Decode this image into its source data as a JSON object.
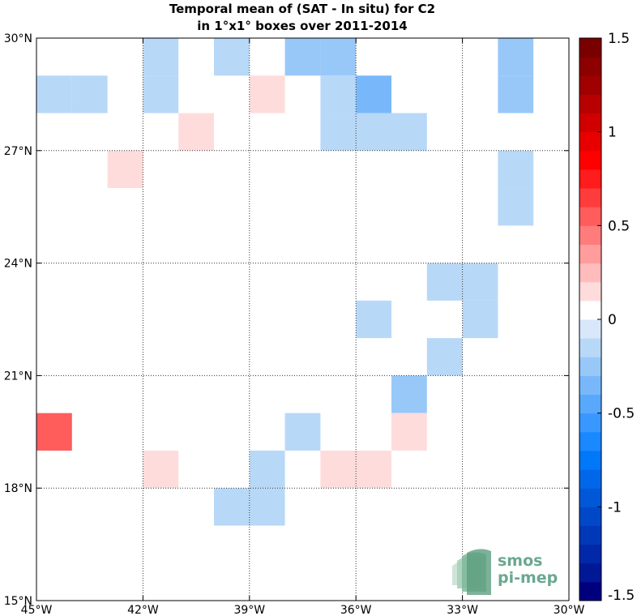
{
  "chart_data": {
    "type": "heatmap",
    "title_lines": [
      "Temporal mean of (SAT - In situ) for C2",
      "in 1°x1° boxes over 2011-2014"
    ],
    "x_ticks": [
      {
        "value": -45,
        "label": "45°W"
      },
      {
        "value": -42,
        "label": "42°W"
      },
      {
        "value": -39,
        "label": "39°W"
      },
      {
        "value": -36,
        "label": "36°W"
      },
      {
        "value": -33,
        "label": "33°W"
      },
      {
        "value": -30,
        "label": "30°W"
      }
    ],
    "y_ticks": [
      {
        "value": 15,
        "label": "15°N"
      },
      {
        "value": 18,
        "label": "18°N"
      },
      {
        "value": 21,
        "label": "21°N"
      },
      {
        "value": 24,
        "label": "24°N"
      },
      {
        "value": 27,
        "label": "27°N"
      },
      {
        "value": 30,
        "label": "30°N"
      }
    ],
    "xlim": [
      -45,
      -30
    ],
    "ylim": [
      15,
      30
    ],
    "grid": true,
    "colorbar": {
      "limits": [
        -1.5,
        1.5
      ],
      "n_levels": 30,
      "ticks": [
        {
          "value": 1.5,
          "label": "1.5"
        },
        {
          "value": 1.0,
          "label": "1"
        },
        {
          "value": 0.5,
          "label": "0.5"
        },
        {
          "value": 0.0,
          "label": "0"
        },
        {
          "value": -0.5,
          "label": "-0.5"
        },
        {
          "value": -1.0,
          "label": "-1"
        },
        {
          "value": -1.5,
          "label": "-1.5"
        }
      ],
      "colors": [
        "#00007f",
        "#001896",
        "#0028a8",
        "#0038b8",
        "#0048c8",
        "#0058d8",
        "#0068e8",
        "#0078f8",
        "#1a88ff",
        "#3898ff",
        "#58a8fc",
        "#78b8fa",
        "#98c8f8",
        "#b8d8f8",
        "#d8e8fa",
        "#ffffff",
        "#ffdcdc",
        "#ffbcbc",
        "#ff9c9c",
        "#ff7c7c",
        "#ff5c5c",
        "#ff3c3c",
        "#ff1c1c",
        "#ff0000",
        "#e80000",
        "#d00000",
        "#b80000",
        "#a00000",
        "#8c0000",
        "#7a0000"
      ]
    },
    "cells": [
      {
        "lon": -45,
        "lat": 28,
        "value": -0.1
      },
      {
        "lon": -44,
        "lat": 28,
        "value": -0.1
      },
      {
        "lon": -42,
        "lat": 29,
        "value": -0.1
      },
      {
        "lon": -42,
        "lat": 28,
        "value": -0.1
      },
      {
        "lon": -40,
        "lat": 29,
        "value": -0.1
      },
      {
        "lon": -38,
        "lat": 29,
        "value": -0.25
      },
      {
        "lon": -37,
        "lat": 29,
        "value": -0.25
      },
      {
        "lon": -32,
        "lat": 29,
        "value": -0.25
      },
      {
        "lon": -32,
        "lat": 28,
        "value": -0.25
      },
      {
        "lon": -39,
        "lat": 28,
        "value": 0.15
      },
      {
        "lon": -37,
        "lat": 28,
        "value": -0.1
      },
      {
        "lon": -36,
        "lat": 28,
        "value": -0.3
      },
      {
        "lon": -41,
        "lat": 27,
        "value": 0.15
      },
      {
        "lon": -37,
        "lat": 27,
        "value": -0.1
      },
      {
        "lon": -36,
        "lat": 27,
        "value": -0.1
      },
      {
        "lon": -35,
        "lat": 27,
        "value": -0.1
      },
      {
        "lon": -43,
        "lat": 26,
        "value": 0.15
      },
      {
        "lon": -32,
        "lat": 26,
        "value": -0.1
      },
      {
        "lon": -32,
        "lat": 25,
        "value": -0.1
      },
      {
        "lon": -34,
        "lat": 23,
        "value": -0.1
      },
      {
        "lon": -33,
        "lat": 23,
        "value": -0.1
      },
      {
        "lon": -36,
        "lat": 22,
        "value": -0.1
      },
      {
        "lon": -33,
        "lat": 22,
        "value": -0.1
      },
      {
        "lon": -34,
        "lat": 21,
        "value": -0.1
      },
      {
        "lon": -35,
        "lat": 20,
        "value": -0.25
      },
      {
        "lon": -45,
        "lat": 19,
        "value": 0.5
      },
      {
        "lon": -38,
        "lat": 19,
        "value": -0.2
      },
      {
        "lon": -35,
        "lat": 19,
        "value": 0.15
      },
      {
        "lon": -42,
        "lat": 18,
        "value": 0.15
      },
      {
        "lon": -39,
        "lat": 18,
        "value": -0.1
      },
      {
        "lon": -37,
        "lat": 18,
        "value": 0.15
      },
      {
        "lon": -36,
        "lat": 18,
        "value": 0.15
      },
      {
        "lon": -40,
        "lat": 17,
        "value": -0.1
      },
      {
        "lon": -39,
        "lat": 17,
        "value": -0.2
      }
    ]
  },
  "logo": {
    "line1": "smos",
    "line2": "pi-mep",
    "color": "#6aa890"
  }
}
